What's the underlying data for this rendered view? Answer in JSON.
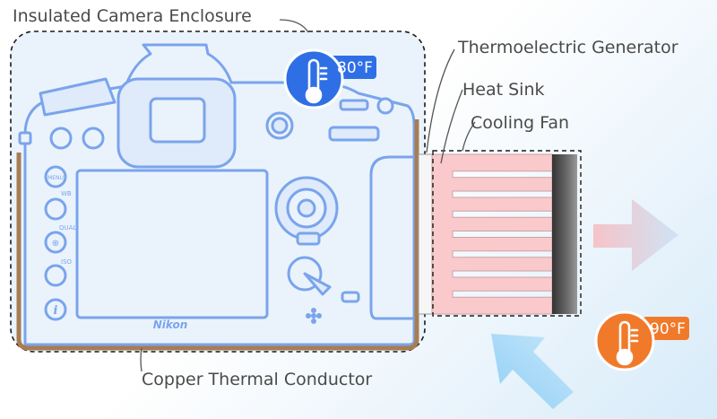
{
  "labels": {
    "enclosure": "Insulated Camera Enclosure",
    "teg": "Thermoelectric Generator",
    "heat_sink": "Heat Sink",
    "cooling_fan": "Cooling Fan",
    "conductor": "Copper Thermal Conductor"
  },
  "camera": {
    "brand": "Nikon",
    "buttons": [
      "MENU",
      "WB",
      "QUAL",
      "ISO"
    ]
  },
  "temperatures": {
    "inside": "80°F",
    "outside": "90°F"
  },
  "colors": {
    "camera_line": "#7aa4ec",
    "inside_badge": "#2f6fe6",
    "outside_badge": "#f07a2a",
    "copper": "#a87d52",
    "heat_sink": "#f9c9cc",
    "fan_dark": "#444444",
    "cool_air": "#9fd4f5"
  }
}
